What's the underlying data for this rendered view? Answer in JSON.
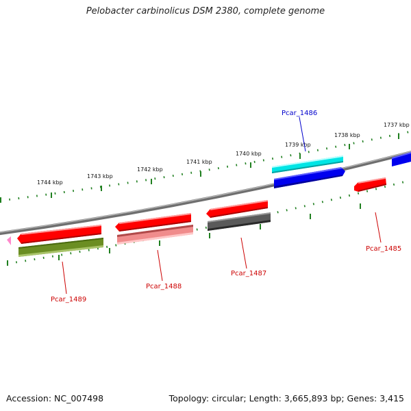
{
  "title": "Pelobacter carbinolicus DSM 2380, complete genome",
  "footer": {
    "accession": "Accession: NC_007498",
    "summary": "Topology: circular; Length: 3,665,893 bp; Genes: 3,415"
  },
  "scale_labels": [
    "1744 kbp",
    "1743 kbp",
    "1742 kbp",
    "1741 kbp",
    "1740 kbp",
    "1739 kbp",
    "1738 kbp",
    "1737 kbp"
  ],
  "gene_labels": [
    {
      "text": "Pcar_1486",
      "color": "#0000cc"
    },
    {
      "text": "Pcar_1485",
      "color": "#cc0000"
    },
    {
      "text": "Pcar_1487",
      "color": "#cc0000"
    },
    {
      "text": "Pcar_1488",
      "color": "#cc0000"
    },
    {
      "text": "Pcar_1489",
      "color": "#cc0000"
    }
  ],
  "colors": {
    "backbone": "#8a8a8a",
    "scale_ticks": "#1f7f1f",
    "red": "#ff0000",
    "cyan": "#00e5e5",
    "blue": "#0000ee",
    "olive": "#6b8e23",
    "pink": "#f08c8c",
    "gray": "#5a5a5a",
    "magenta": "#ff88cc"
  }
}
